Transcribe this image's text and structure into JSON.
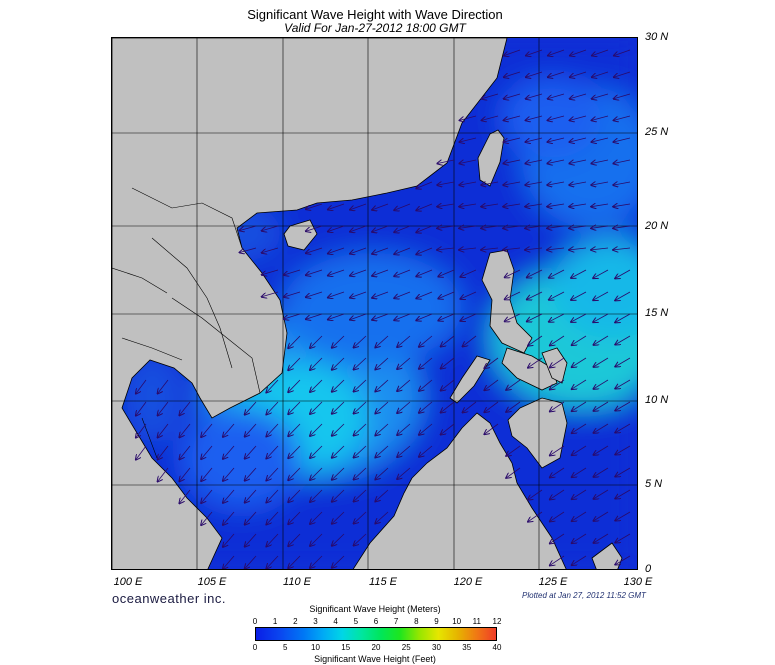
{
  "header": {
    "title": "Significant Wave Height with Wave Direction",
    "subtitle": "Valid For Jan-27-2012 18:00 GMT"
  },
  "map": {
    "lon_range": [
      99,
      130
    ],
    "lat_range": [
      0,
      30
    ],
    "lat_labels": [
      "30 N",
      "25 N",
      "20 N",
      "15 N",
      "10 N",
      "5 N",
      "0"
    ],
    "lon_labels": [
      "100 E",
      "105 E",
      "110 E",
      "115 E",
      "120 E",
      "125 E",
      "130 E"
    ],
    "grid": true,
    "colors": {
      "land": "#c0c0c0",
      "ocean_base": "#0a2fd6",
      "arrow": "#2a0a6a"
    }
  },
  "footer": {
    "brand": "oceanweather inc.",
    "plotted": "Plotted at Jan 27, 2012 11:52 GMT"
  },
  "colorbar": {
    "title_top": "Significant Wave Height (Meters)",
    "title_bottom": "Significant Wave Height (Feet)",
    "meters": [
      "0",
      "1",
      "2",
      "3",
      "4",
      "5",
      "6",
      "7",
      "8",
      "9",
      "10",
      "11",
      "12"
    ],
    "feet": [
      "0",
      "5",
      "10",
      "15",
      "20",
      "25",
      "30",
      "35",
      "40"
    ]
  }
}
